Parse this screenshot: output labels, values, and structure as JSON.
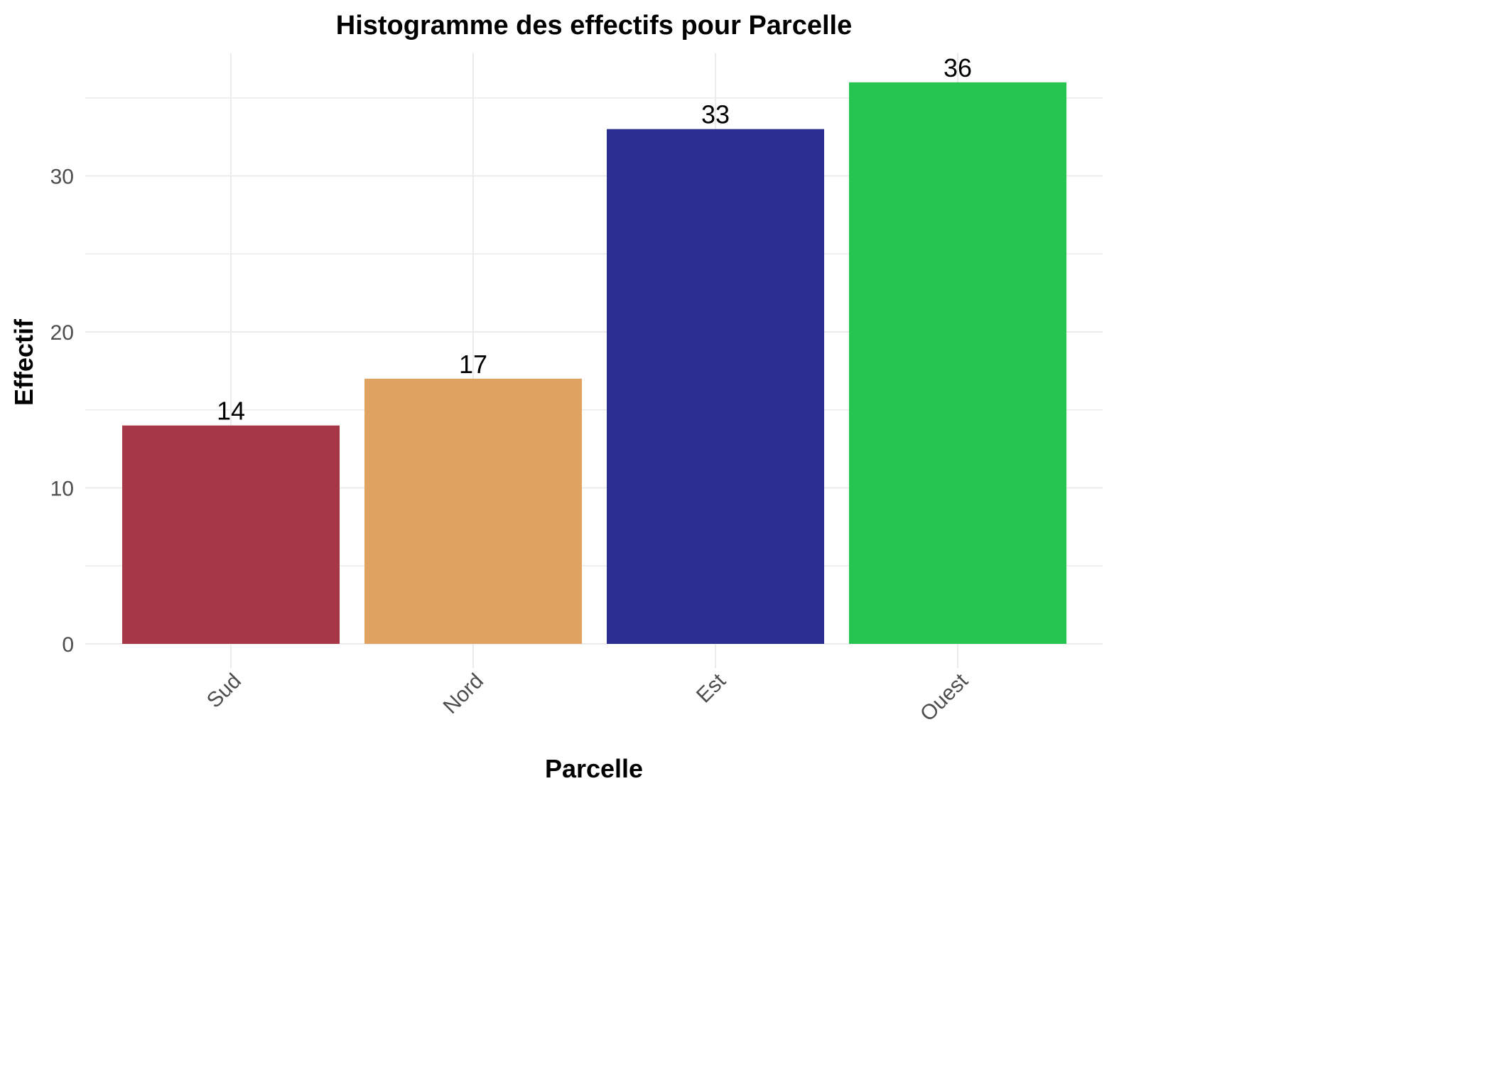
{
  "chart_data": {
    "type": "bar",
    "title": "Histogramme des effectifs pour Parcelle",
    "xlabel": "Parcelle",
    "ylabel": "Effectif",
    "categories": [
      "Sud",
      "Nord",
      "Est",
      "Ouest"
    ],
    "values": [
      14,
      17,
      33,
      36
    ],
    "colors": [
      "#A63746",
      "#DFA261",
      "#2B2E8F",
      "#26C552"
    ],
    "ylim": [
      0,
      38
    ],
    "yticks": [
      0,
      10,
      20,
      30
    ],
    "grid": true,
    "legend": "none",
    "x_tick_rotation": -45
  }
}
